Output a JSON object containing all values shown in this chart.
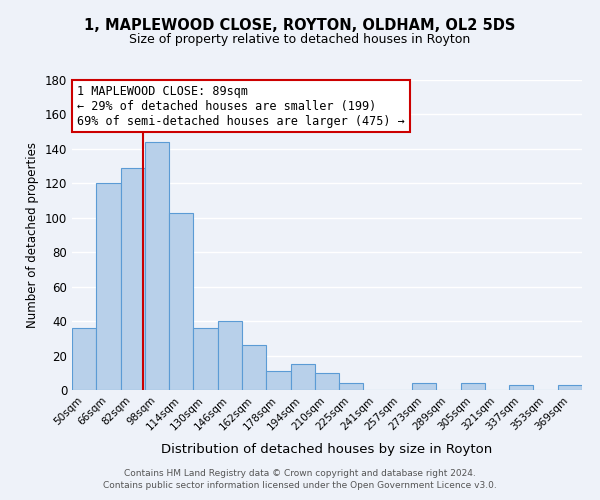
{
  "title": "1, MAPLEWOOD CLOSE, ROYTON, OLDHAM, OL2 5DS",
  "subtitle": "Size of property relative to detached houses in Royton",
  "xlabel": "Distribution of detached houses by size in Royton",
  "ylabel": "Number of detached properties",
  "bin_labels": [
    "50sqm",
    "66sqm",
    "82sqm",
    "98sqm",
    "114sqm",
    "130sqm",
    "146sqm",
    "162sqm",
    "178sqm",
    "194sqm",
    "210sqm",
    "225sqm",
    "241sqm",
    "257sqm",
    "273sqm",
    "289sqm",
    "305sqm",
    "321sqm",
    "337sqm",
    "353sqm",
    "369sqm"
  ],
  "bar_values": [
    36,
    120,
    129,
    144,
    103,
    36,
    40,
    26,
    11,
    15,
    10,
    4,
    0,
    0,
    4,
    0,
    4,
    0,
    3,
    0,
    3
  ],
  "bar_color": "#b8d0ea",
  "bar_edge_color": "#5b9bd5",
  "ylim": [
    0,
    180
  ],
  "yticks": [
    0,
    20,
    40,
    60,
    80,
    100,
    120,
    140,
    160,
    180
  ],
  "vline_color": "#cc0000",
  "annotation_title": "1 MAPLEWOOD CLOSE: 89sqm",
  "annotation_line1": "← 29% of detached houses are smaller (199)",
  "annotation_line2": "69% of semi-detached houses are larger (475) →",
  "annotation_box_color": "#cc0000",
  "footer_line1": "Contains HM Land Registry data © Crown copyright and database right 2024.",
  "footer_line2": "Contains public sector information licensed under the Open Government Licence v3.0.",
  "background_color": "#eef2f9"
}
